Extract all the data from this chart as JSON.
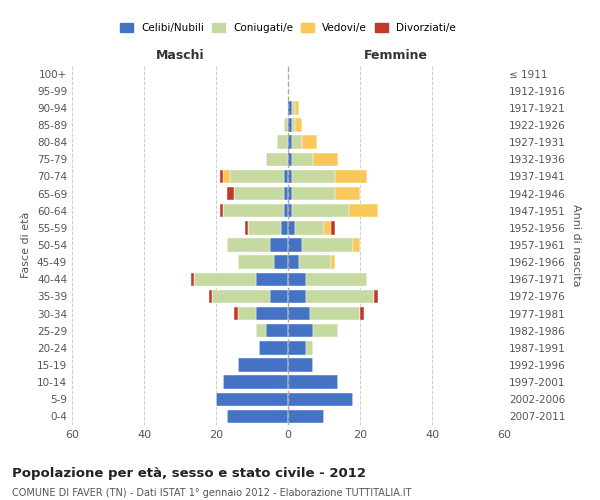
{
  "age_groups": [
    "0-4",
    "5-9",
    "10-14",
    "15-19",
    "20-24",
    "25-29",
    "30-34",
    "35-39",
    "40-44",
    "45-49",
    "50-54",
    "55-59",
    "60-64",
    "65-69",
    "70-74",
    "75-79",
    "80-84",
    "85-89",
    "90-94",
    "95-99",
    "100+"
  ],
  "birth_years": [
    "2007-2011",
    "2002-2006",
    "1997-2001",
    "1992-1996",
    "1987-1991",
    "1982-1986",
    "1977-1981",
    "1972-1976",
    "1967-1971",
    "1962-1966",
    "1957-1961",
    "1952-1956",
    "1947-1951",
    "1942-1946",
    "1937-1941",
    "1932-1936",
    "1927-1931",
    "1922-1926",
    "1917-1921",
    "1912-1916",
    "≤ 1911"
  ],
  "male_celibi": [
    17,
    20,
    18,
    14,
    8,
    6,
    9,
    5,
    9,
    4,
    5,
    2,
    1,
    1,
    1,
    0,
    0,
    0,
    0,
    0,
    0
  ],
  "male_coniugati": [
    0,
    0,
    0,
    0,
    0,
    3,
    5,
    16,
    17,
    10,
    12,
    9,
    17,
    14,
    15,
    6,
    3,
    1,
    0,
    0,
    0
  ],
  "male_vedovi": [
    0,
    0,
    0,
    0,
    0,
    0,
    0,
    0,
    0,
    0,
    0,
    0,
    0,
    0,
    2,
    0,
    0,
    0,
    0,
    0,
    0
  ],
  "male_divorziati": [
    0,
    0,
    0,
    0,
    0,
    0,
    1,
    1,
    1,
    0,
    0,
    1,
    1,
    2,
    1,
    0,
    0,
    0,
    0,
    0,
    0
  ],
  "female_celibi": [
    10,
    18,
    14,
    7,
    5,
    7,
    6,
    5,
    5,
    3,
    4,
    2,
    1,
    1,
    1,
    1,
    1,
    1,
    1,
    0,
    0
  ],
  "female_coniugati": [
    0,
    0,
    0,
    0,
    2,
    7,
    14,
    19,
    17,
    9,
    14,
    8,
    16,
    12,
    12,
    6,
    3,
    1,
    1,
    0,
    0
  ],
  "female_vedovi": [
    0,
    0,
    0,
    0,
    0,
    0,
    0,
    0,
    0,
    1,
    2,
    2,
    8,
    7,
    9,
    7,
    4,
    2,
    1,
    0,
    0
  ],
  "female_divorziati": [
    0,
    0,
    0,
    0,
    0,
    0,
    1,
    1,
    0,
    0,
    0,
    1,
    0,
    0,
    0,
    0,
    0,
    0,
    0,
    0,
    0
  ],
  "color_celibi": "#4472C4",
  "color_coniugati": "#C5D9A0",
  "color_vedovi": "#FAC858",
  "color_divorziati": "#C0392B",
  "title": "Popolazione per età, sesso e stato civile - 2012",
  "subtitle": "COMUNE DI FAVER (TN) - Dati ISTAT 1° gennaio 2012 - Elaborazione TUTTITALIA.IT",
  "xlabel_left": "Maschi",
  "xlabel_right": "Femmine",
  "ylabel_left": "Fasce di età",
  "ylabel_right": "Anni di nascita",
  "xlim": 60,
  "background_color": "#ffffff",
  "grid_color": "#cccccc"
}
